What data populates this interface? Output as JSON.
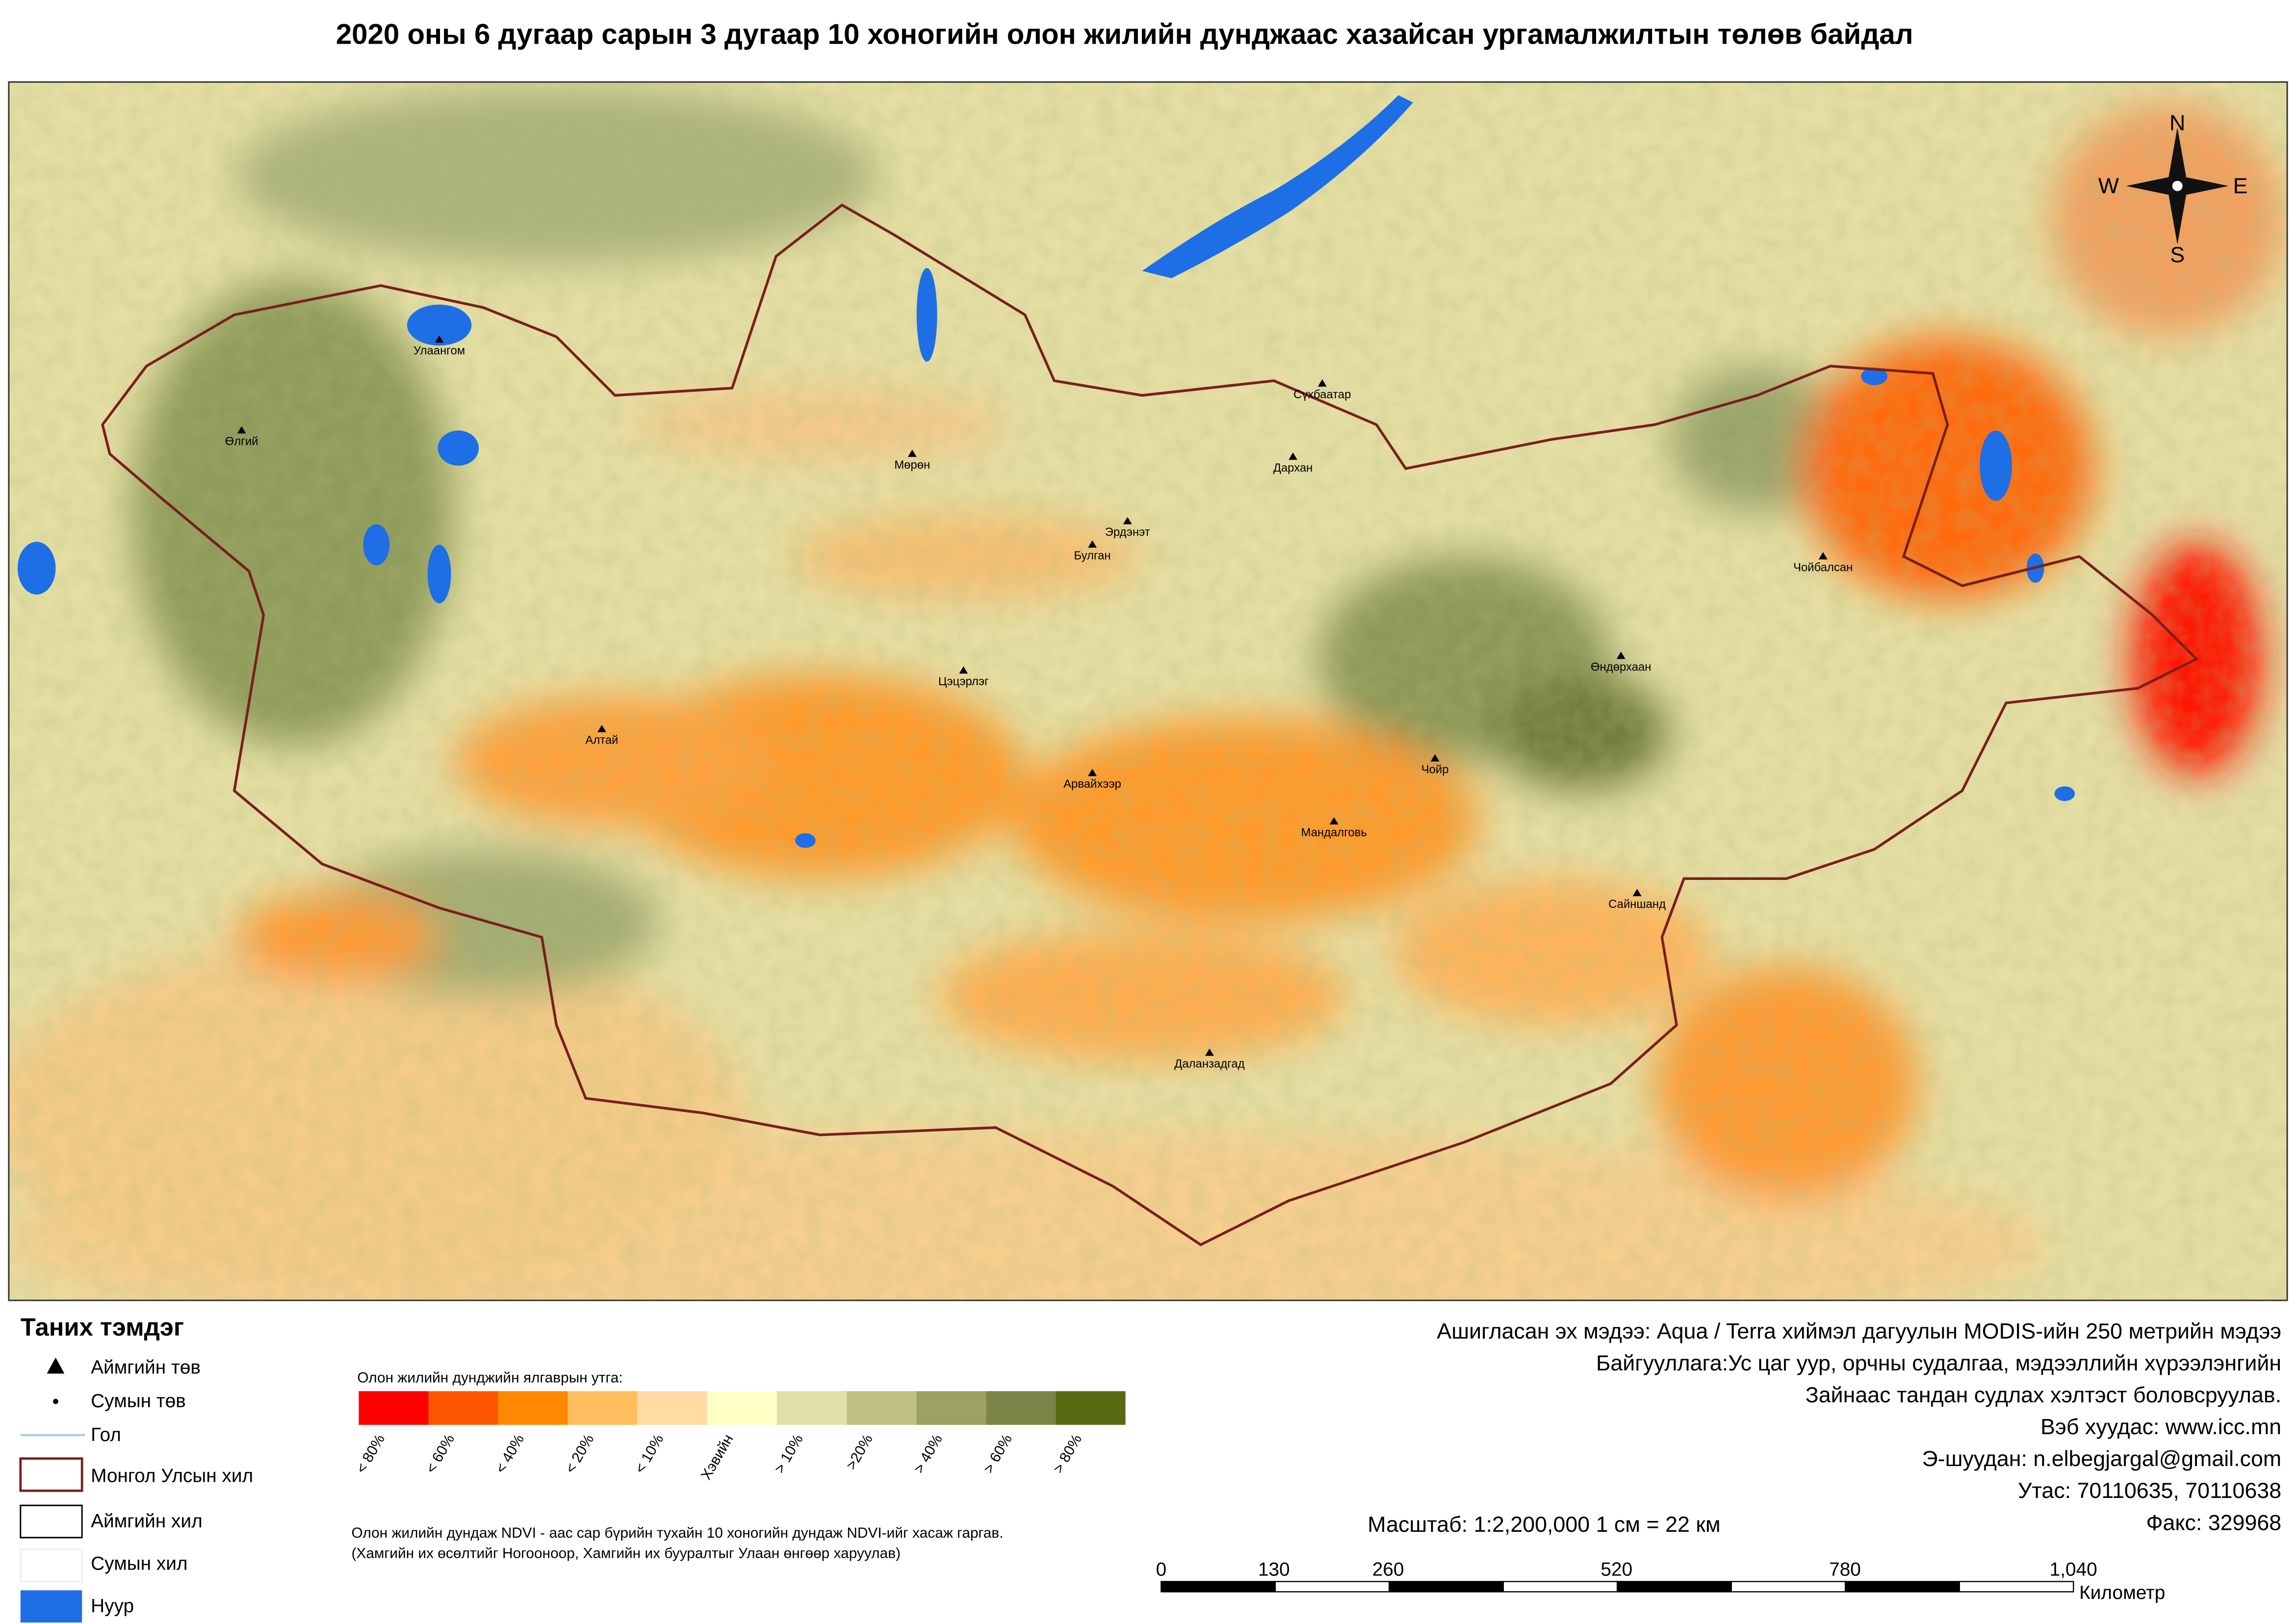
{
  "title": "2020 оны 6 дугаар сарын 3 дугаар 10 хоногийн олон жилийн дунджаас хазайсан ургамалжилтын төлөв байдал",
  "map": {
    "places": [
      "Улаангом",
      "Өлгий",
      "Мөрөн",
      "Сүхбаатар",
      "Дархан",
      "Эрдэнэт",
      "Булган",
      "Чойбалсан",
      "Өндөрхаан",
      "Цэцэрлэг",
      "Алтай",
      "Арвайхээр",
      "Чойр",
      "Мандалговь",
      "Сайншанд",
      "Даланзадгад"
    ]
  },
  "compass": {
    "n": "N",
    "e": "E",
    "s": "S",
    "w": "W"
  },
  "legend": {
    "title": "Таних тэмдэг",
    "items": [
      "Аймгийн төв",
      "Сумын төв",
      "Гол",
      "Монгол Улсын хил",
      "Аймгийн хил",
      "Сумын хил",
      "Нуур"
    ]
  },
  "color_scale": {
    "title": "Олон жилийн дунджийн ялгаврын утга:",
    "classes": [
      {
        "label": "< 80%",
        "color": "#ff0000"
      },
      {
        "label": "< 60%",
        "color": "#ff5500"
      },
      {
        "label": "< 40%",
        "color": "#ff8800"
      },
      {
        "label": "< 20%",
        "color": "#ffbf5f"
      },
      {
        "label": "< 10%",
        "color": "#ffdca3"
      },
      {
        "label": "Хэвийн",
        "color": "#ffffc6"
      },
      {
        "label": "> 10%",
        "color": "#e0e0a8"
      },
      {
        "label": ">20%",
        "color": "#bfc283"
      },
      {
        "label": "> 40%",
        "color": "#9da262"
      },
      {
        "label": "> 60%",
        "color": "#7b8547"
      },
      {
        "label": "> 80%",
        "color": "#566a12"
      }
    ]
  },
  "note": [
    "Олон жилийн дундаж NDVI - аас сар бүрийн тухайн 10 хоногийн дундаж NDVI-ийг хасаж гаргав.",
    "(Хамгийн их өсөлтийг Ногооноор,  Хамгийн их бууралтыг Улаан өнгөөр харуулав)"
  ],
  "info": [
    "Ашигласан эх мэдээ: Aqua / Terra хиймэл дагуулын MODIS-ийн 250 метрийн мэдээ",
    "Байгууллага:Ус цаг уур, орчны судалгаа, мэдээллийн хүрээлэнгийн",
    "Зайнаас тандан судлах хэлтэст боловсруулав.",
    "Вэб хуудас: www.icc.mn",
    "Э-шуудан: n.elbegjargal@gmail.com",
    "Утас: 70110635, 70110638",
    "Факс: 329968"
  ],
  "scale_text": "Масштаб: 1:2,200,000   1 см = 22 км",
  "scale_bar": {
    "ticks": [
      "0",
      "130",
      "260",
      "520",
      "780",
      "1,040"
    ],
    "unit": "Километр"
  }
}
